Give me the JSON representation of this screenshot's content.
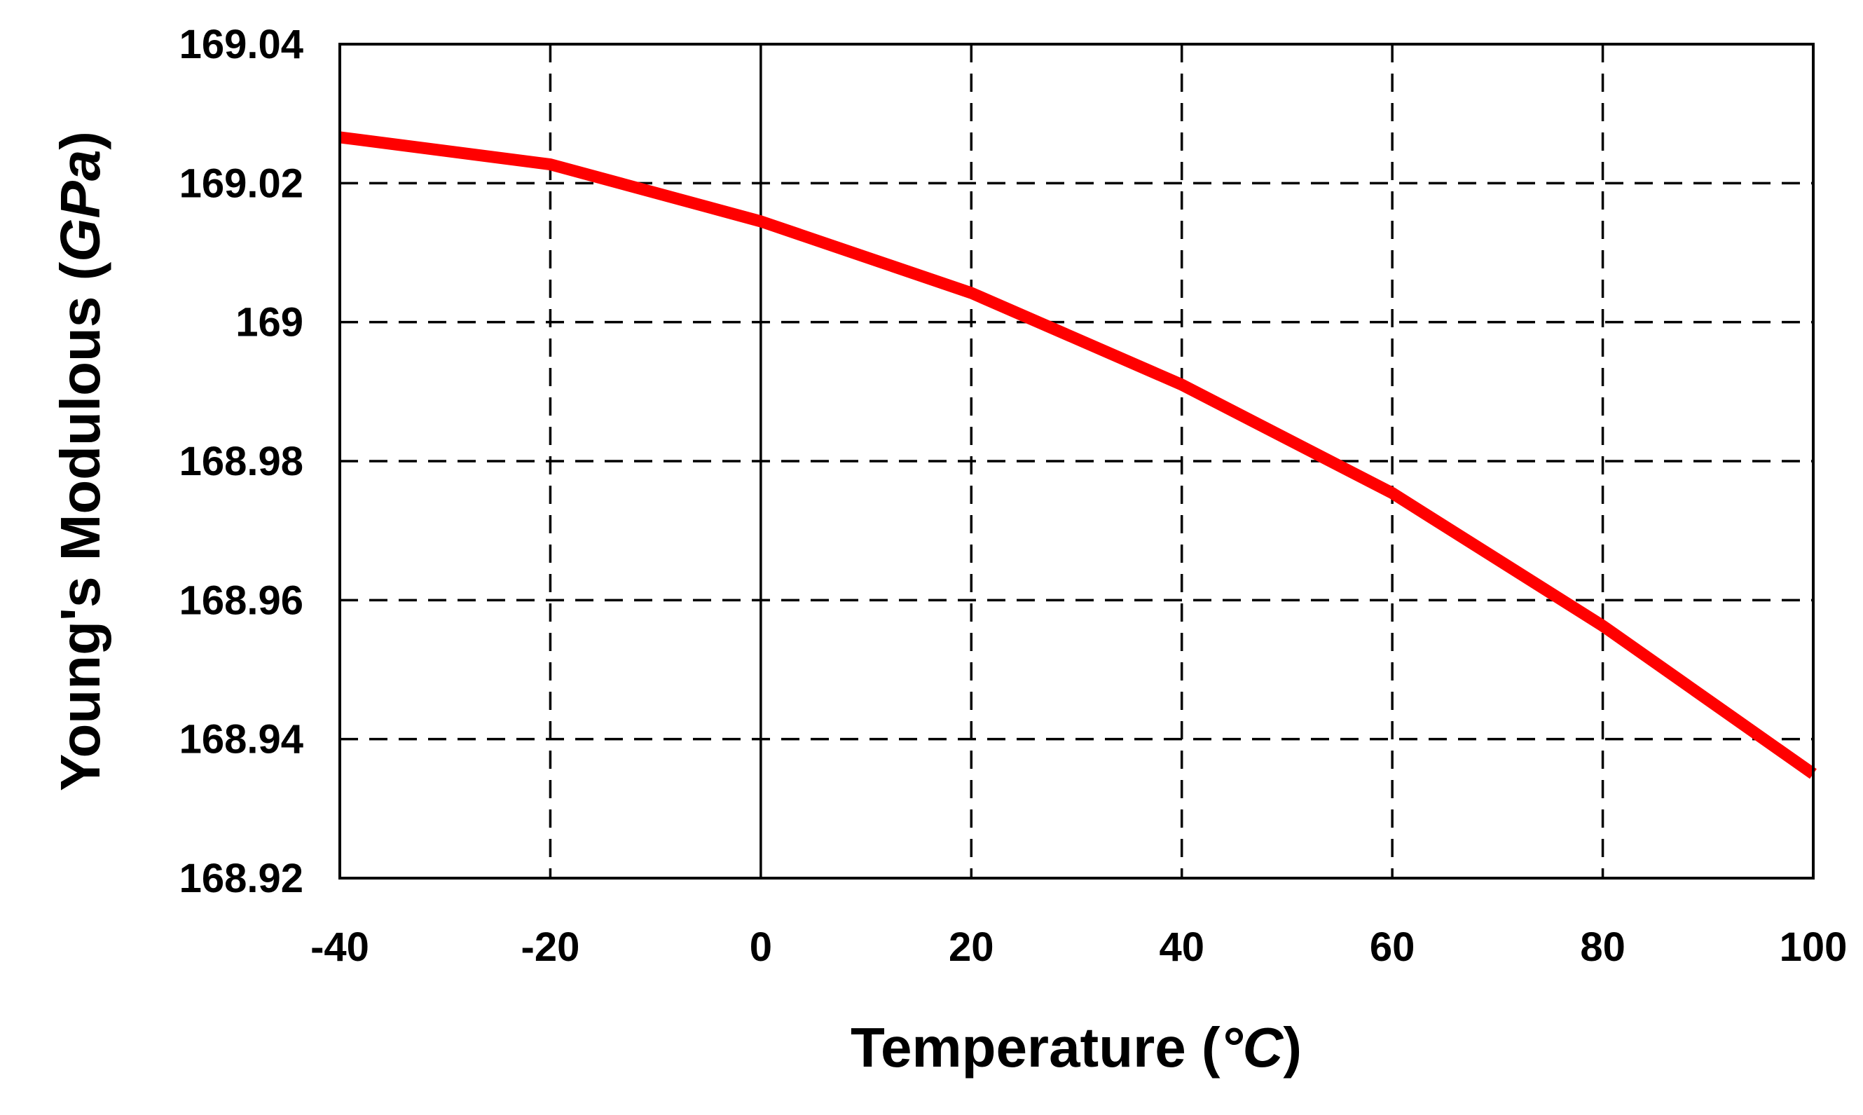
{
  "chart_data": {
    "type": "line",
    "title": "",
    "xlabel": {
      "prefix": "Temperature (",
      "unit": "°C",
      "suffix": ")"
    },
    "ylabel": {
      "prefix": "Young's Modulous (",
      "unit": "GPa",
      "suffix": ")"
    },
    "xlim": [
      -40,
      100
    ],
    "ylim": [
      168.92,
      169.04
    ],
    "xticks": [
      -40,
      -20,
      0,
      20,
      40,
      60,
      80,
      100
    ],
    "yticks": [
      168.92,
      168.94,
      168.96,
      168.98,
      169.0,
      169.02,
      169.04
    ],
    "xtick_labels": [
      "-40",
      "-20",
      "0",
      "20",
      "40",
      "60",
      "80",
      "100"
    ],
    "ytick_labels": [
      "168.92",
      "168.94",
      "168.96",
      "168.98",
      "169",
      "169.02",
      "169.04"
    ],
    "grid": true,
    "grid_style": "dashed",
    "legend": "none",
    "series": [
      {
        "color": "#ff0000",
        "x": [
          -40,
          -20,
          0,
          20,
          40,
          60,
          80,
          100
        ],
        "y": [
          169.0266,
          169.0227,
          169.0145,
          169.0042,
          168.991,
          168.9754,
          168.9563,
          168.935
        ]
      }
    ],
    "colors": {
      "line": "#ff0000",
      "grid": "#000000",
      "frame": "#000000",
      "zero_line": "#000000"
    }
  }
}
